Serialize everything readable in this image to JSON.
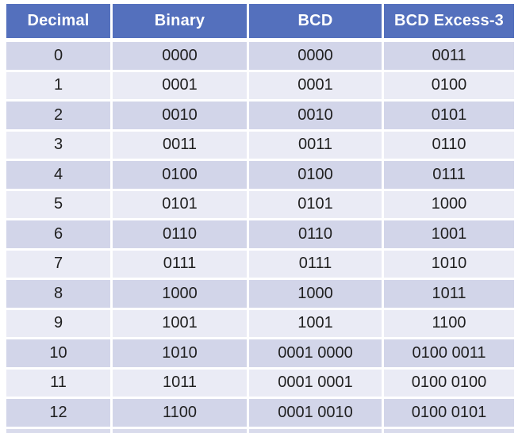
{
  "table": {
    "headers": [
      "Decimal",
      "Binary",
      "BCD",
      "BCD Excess-3"
    ],
    "rows": [
      [
        "0",
        "0000",
        "0000",
        "0011"
      ],
      [
        "1",
        "0001",
        "0001",
        "0100"
      ],
      [
        "2",
        "0010",
        "0010",
        "0101"
      ],
      [
        "3",
        "0011",
        "0011",
        "0110"
      ],
      [
        "4",
        "0100",
        "0100",
        "0111"
      ],
      [
        "5",
        "0101",
        "0101",
        "1000"
      ],
      [
        "6",
        "0110",
        "0110",
        "1001"
      ],
      [
        "7",
        "0111",
        "0111",
        "1010"
      ],
      [
        "8",
        "1000",
        "1000",
        "1011"
      ],
      [
        "9",
        "1001",
        "1001",
        "1100"
      ],
      [
        "10",
        "1010",
        "0001 0000",
        "0100 0011"
      ],
      [
        "11",
        "1011",
        "0001 0001",
        "0100 0100"
      ],
      [
        "12",
        "1100",
        "0001 0010",
        "0100 0101"
      ]
    ],
    "colors": {
      "header_bg": "#5470BD",
      "header_text": "#FFFFFF",
      "band_dark": "#D2D5E9",
      "band_light": "#EAEBF5",
      "body_text": "#1F1F1F",
      "gutter": "#FFFFFF",
      "next_row_sliver": "#D9DBEC"
    }
  }
}
